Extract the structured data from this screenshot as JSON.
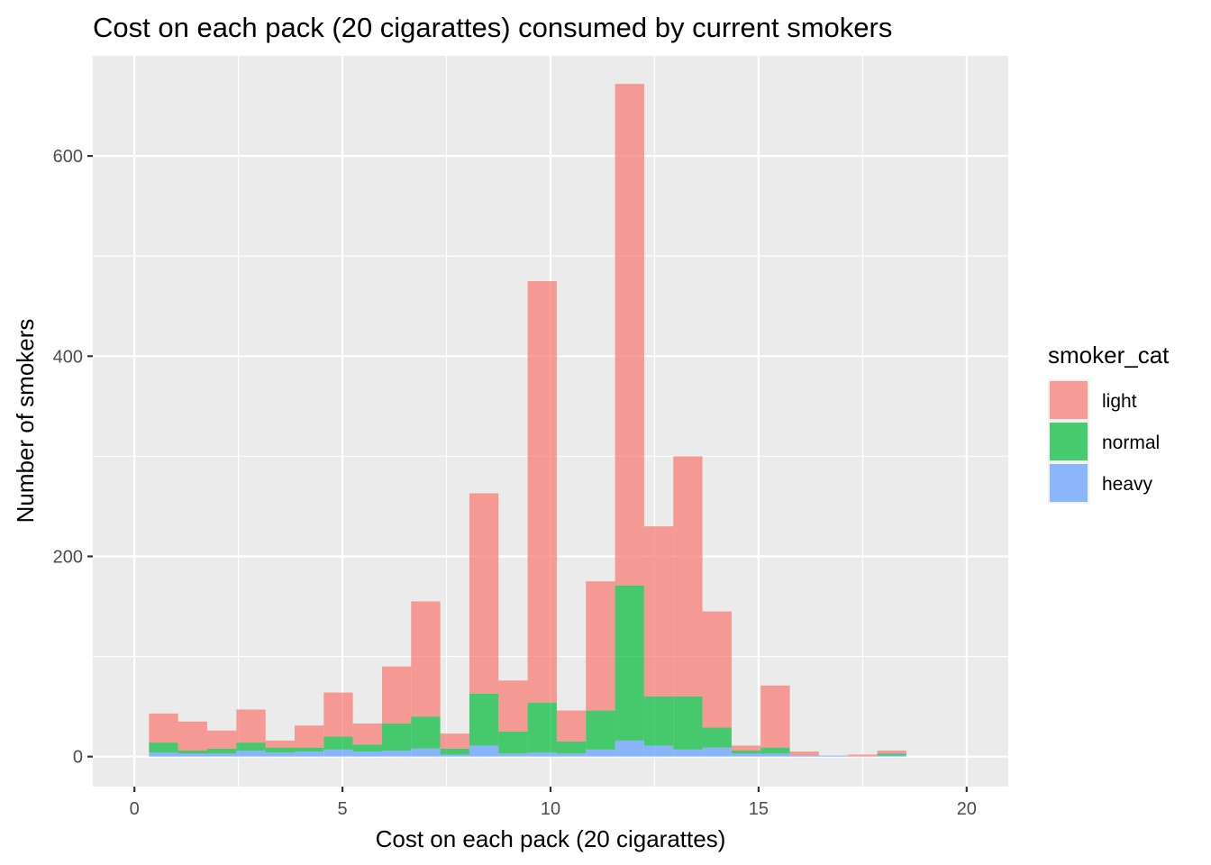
{
  "chart_data": {
    "type": "bar",
    "stacked": true,
    "histogram": true,
    "title": "Cost on each pack (20 cigarattes) consumed by current smokers",
    "xlabel": "Cost on each pack (20 cigarattes)",
    "ylabel": "Number of smokers",
    "xlim": [
      -1,
      21
    ],
    "ylim": [
      -30,
      700
    ],
    "x_ticks": [
      0,
      5,
      10,
      15,
      20
    ],
    "x_tick_labels": [
      "0",
      "5",
      "10",
      "15",
      "20"
    ],
    "y_ticks": [
      0,
      200,
      400,
      600
    ],
    "y_tick_labels": [
      "0",
      "200",
      "400",
      "600"
    ],
    "grid": true,
    "legend_title": "smoker_cat",
    "legend_position": "right",
    "bin_width": 0.7,
    "x": [
      0.7,
      1.4,
      2.1,
      2.8,
      3.5,
      4.2,
      4.9,
      5.6,
      6.3,
      7.0,
      7.7,
      8.4,
      9.1,
      9.8,
      10.5,
      11.2,
      11.9,
      12.6,
      13.3,
      14.0,
      14.7,
      15.4,
      16.1,
      16.8,
      17.5,
      18.2,
      18.9,
      19.6
    ],
    "series": [
      {
        "name": "light",
        "color": "#F8766D",
        "values": [
          29,
          29,
          18,
          33,
          7,
          22,
          44,
          21,
          57,
          115,
          15,
          200,
          51,
          421,
          31,
          129,
          501,
          170,
          240,
          116,
          5,
          62,
          4,
          0,
          2,
          3,
          0,
          0
        ]
      },
      {
        "name": "normal",
        "color": "#00BA38",
        "values": [
          10,
          3,
          5,
          8,
          5,
          4,
          13,
          7,
          27,
          32,
          6,
          52,
          22,
          50,
          12,
          39,
          155,
          49,
          53,
          20,
          3,
          6,
          0,
          0,
          0,
          2,
          0,
          0
        ]
      },
      {
        "name": "heavy",
        "color": "#619CFF",
        "values": [
          4,
          3,
          3,
          6,
          4,
          5,
          7,
          5,
          6,
          8,
          2,
          11,
          3,
          4,
          3,
          7,
          16,
          11,
          7,
          9,
          3,
          3,
          1,
          1,
          0,
          1,
          0,
          0
        ]
      }
    ]
  }
}
